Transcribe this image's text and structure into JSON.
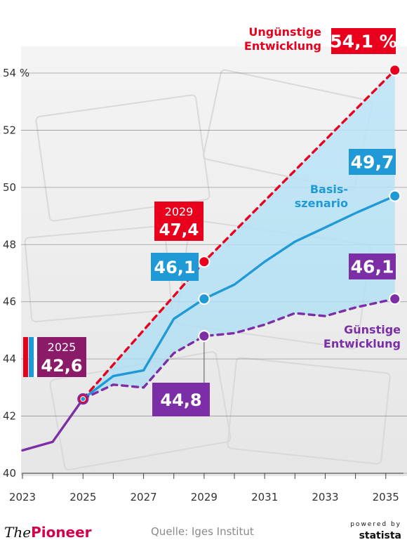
{
  "chart_data": {
    "type": "line",
    "x_ticks": [
      "2023",
      "2025",
      "2027",
      "2029",
      "2031",
      "2033",
      "2035"
    ],
    "y_ticks": [
      "40",
      "42",
      "44",
      "46",
      "48",
      "50",
      "52",
      "54 %"
    ],
    "xlim": [
      2023,
      2035.4
    ],
    "ylim": [
      40,
      55
    ],
    "grid": true,
    "series": [
      {
        "name": "Ungünstige Entwicklung",
        "color": "#e8001c",
        "dashed": true,
        "points": [
          [
            2025.0,
            42.6
          ],
          [
            2029.0,
            47.4
          ],
          [
            2035.3,
            54.1
          ]
        ]
      },
      {
        "name": "Basisszenario",
        "color": "#1f9ad6",
        "dashed": false,
        "points": [
          [
            2025.0,
            42.6
          ],
          [
            2026.0,
            43.4
          ],
          [
            2027.0,
            43.6
          ],
          [
            2028.0,
            45.4
          ],
          [
            2029.0,
            46.1
          ],
          [
            2030.0,
            46.6
          ],
          [
            2031.0,
            47.4
          ],
          [
            2032.0,
            48.1
          ],
          [
            2033.0,
            48.6
          ],
          [
            2034.0,
            49.1
          ],
          [
            2035.3,
            49.7
          ]
        ]
      },
      {
        "name": "Günstige Entwicklung",
        "color": "#7b2ea6",
        "dashed": true,
        "points": [
          [
            2025.0,
            42.6
          ],
          [
            2026.0,
            43.1
          ],
          [
            2027.0,
            43.0
          ],
          [
            2028.0,
            44.2
          ],
          [
            2029.0,
            44.8
          ],
          [
            2030.0,
            44.9
          ],
          [
            2031.0,
            45.2
          ],
          [
            2032.0,
            45.6
          ],
          [
            2033.0,
            45.5
          ],
          [
            2034.0,
            45.8
          ],
          [
            2035.3,
            46.1
          ]
        ]
      },
      {
        "name": "",
        "color": "#7b2ea6",
        "dashed": false,
        "points": [
          [
            2023.0,
            40.8
          ],
          [
            2024.0,
            41.1
          ],
          [
            2025.0,
            42.6
          ]
        ]
      }
    ],
    "labels": [
      {
        "year": "",
        "value": "54,1 %",
        "color": "#e8001c"
      },
      {
        "year": "",
        "value": "49,7",
        "color": "#1f9ad6"
      },
      {
        "year": "",
        "value": "46,1",
        "color": "#7b2ea6"
      },
      {
        "year": "2029",
        "value": "47,4",
        "color": "#e8001c"
      },
      {
        "year": "",
        "value": "46,1",
        "color": "#1f9ad6"
      },
      {
        "year": "",
        "value": "44,8",
        "color": "#7b2ea6"
      },
      {
        "year": "2025",
        "value": "42,6",
        "color": "#8b1a68"
      }
    ],
    "series_labels": [
      {
        "lines": [
          "Ungünstige",
          "Entwicklung"
        ],
        "color": "#e8001c"
      },
      {
        "lines": [
          "Basis-",
          "szenario"
        ],
        "color": "#1f9ad6"
      },
      {
        "lines": [
          "Günstige",
          "Entwicklung"
        ],
        "color": "#7b2ea6"
      }
    ]
  },
  "footer": {
    "brand_prefix": "The",
    "brand_name": "Pioneer",
    "source": "Quelle: Iges Institut",
    "powered_by": "powered by",
    "statista": "statista"
  }
}
